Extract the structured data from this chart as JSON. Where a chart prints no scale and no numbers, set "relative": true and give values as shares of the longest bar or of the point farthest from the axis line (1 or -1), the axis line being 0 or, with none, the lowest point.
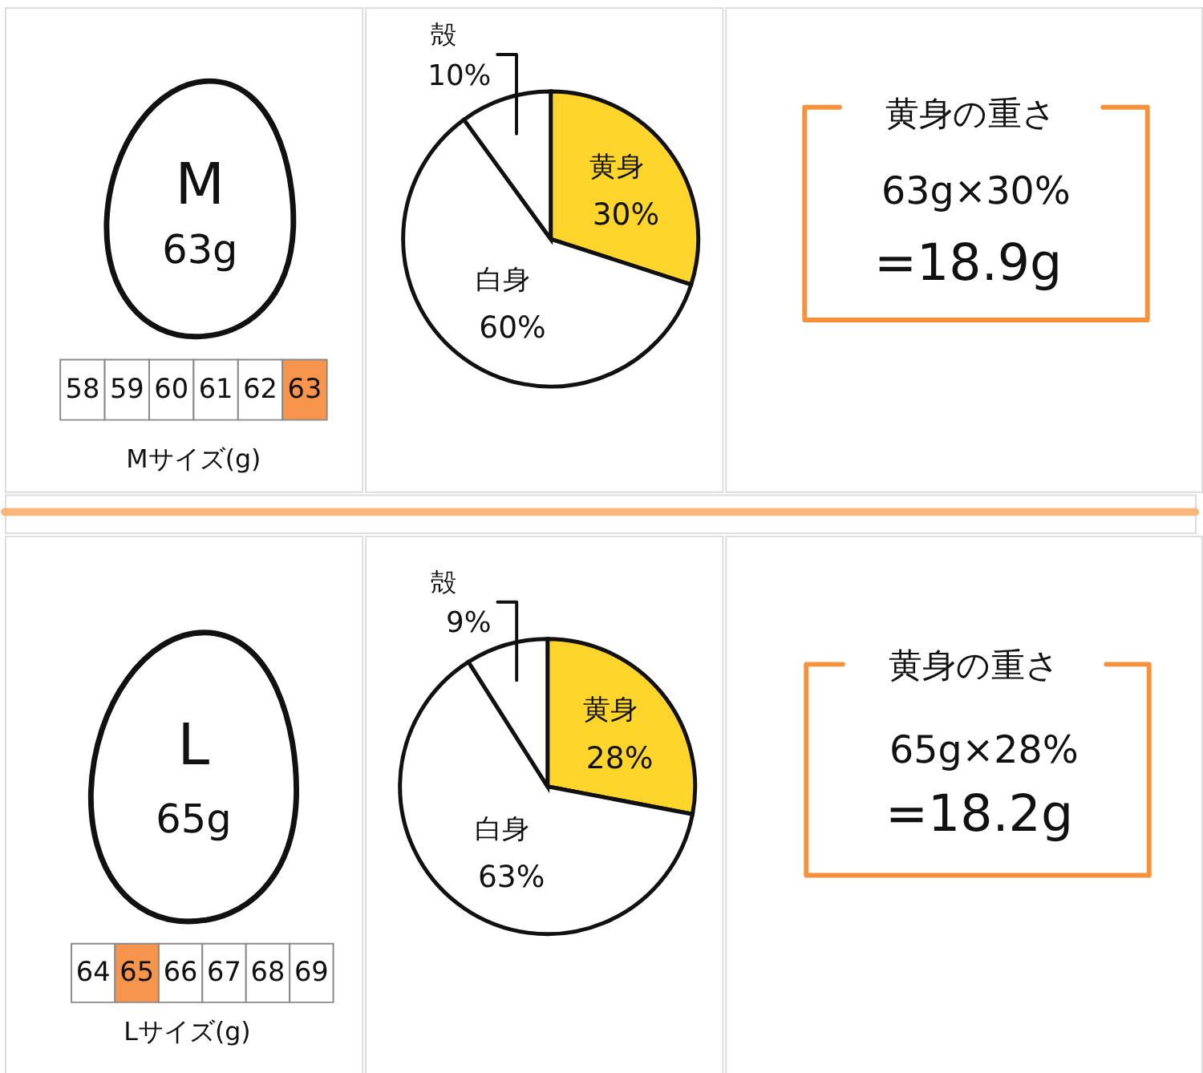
{
  "chart_data": [
    {
      "type": "bar",
      "title": "M",
      "subtitle": "63g",
      "categories": [
        "58",
        "59",
        "60",
        "61",
        "62",
        "63"
      ],
      "values": [
        1,
        1,
        1,
        1,
        1,
        1
      ],
      "relative": true,
      "colors": [
        "#ffffff",
        "#ffffff",
        "#ffffff",
        "#ffffff",
        "#ffffff",
        "#f7954d"
      ],
      "xlabel": "Mサイズ(g)"
    },
    {
      "type": "pie",
      "categories": [
        "黄身",
        "白身",
        "殻"
      ],
      "values": [
        30,
        60,
        10
      ],
      "colors": [
        "#fdd52b",
        "#ffffff",
        "#ffffff"
      ],
      "value_labels": [
        "30%",
        "60%",
        "10%"
      ]
    },
    {
      "type": "other",
      "title": "黄身の重さ",
      "annotations": [
        "63g×30%",
        "=18.9g"
      ]
    },
    {
      "type": "bar",
      "title": "L",
      "subtitle": "65g",
      "categories": [
        "64",
        "65",
        "66",
        "67",
        "68",
        "69"
      ],
      "values": [
        1,
        1,
        1,
        1,
        1,
        1
      ],
      "relative": true,
      "colors": [
        "#ffffff",
        "#f7954d",
        "#ffffff",
        "#ffffff",
        "#ffffff",
        "#ffffff"
      ],
      "xlabel": "Lサイズ(g)"
    },
    {
      "type": "pie",
      "categories": [
        "黄身",
        "白身",
        "殻"
      ],
      "values": [
        28,
        63,
        9
      ],
      "colors": [
        "#fdd52b",
        "#ffffff",
        "#ffffff"
      ],
      "value_labels": [
        "28%",
        "63%",
        "9%"
      ]
    },
    {
      "type": "other",
      "title": "黄身の重さ",
      "annotations": [
        "65g×28%",
        "=18.2g"
      ]
    }
  ]
}
